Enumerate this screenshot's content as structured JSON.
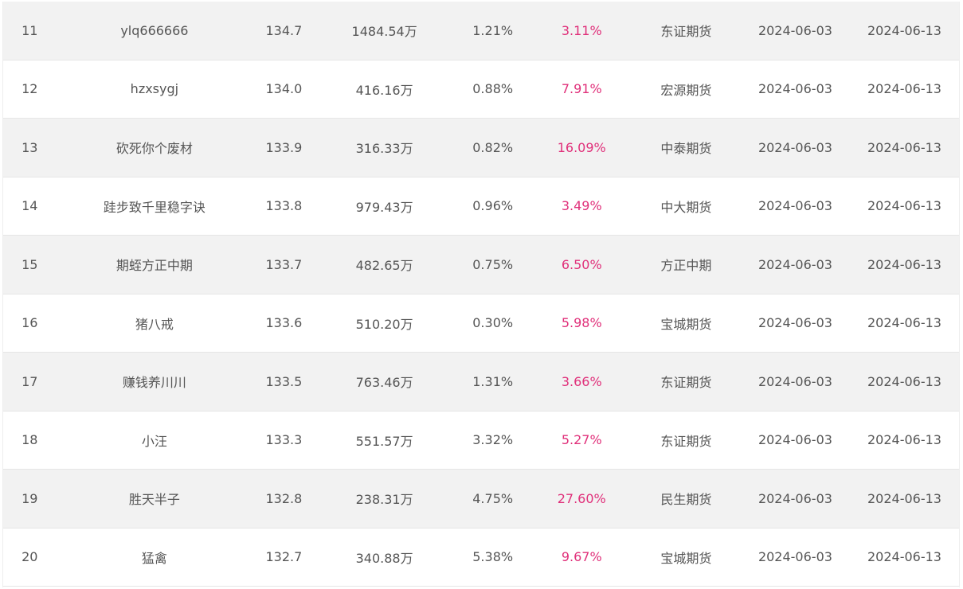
{
  "colors": {
    "row_odd_bg": "#f2f2f2",
    "row_even_bg": "#ffffff",
    "text": "#555555",
    "return_highlight": "#e0307a"
  },
  "rows": [
    {
      "rank": "11",
      "name": "ylq666666",
      "score": "134.7",
      "equity": "1484.54万",
      "drawdown": "1.21%",
      "return": "3.11%",
      "broker": "东证期货",
      "start": "2024-06-03",
      "end": "2024-06-13"
    },
    {
      "rank": "12",
      "name": "hzxsygj",
      "score": "134.0",
      "equity": "416.16万",
      "drawdown": "0.88%",
      "return": "7.91%",
      "broker": "宏源期货",
      "start": "2024-06-03",
      "end": "2024-06-13"
    },
    {
      "rank": "13",
      "name": "砍死你个废材",
      "score": "133.9",
      "equity": "316.33万",
      "drawdown": "0.82%",
      "return": "16.09%",
      "broker": "中泰期货",
      "start": "2024-06-03",
      "end": "2024-06-13"
    },
    {
      "rank": "14",
      "name": "跬步致千里稳字诀",
      "score": "133.8",
      "equity": "979.43万",
      "drawdown": "0.96%",
      "return": "3.49%",
      "broker": "中大期货",
      "start": "2024-06-03",
      "end": "2024-06-13"
    },
    {
      "rank": "15",
      "name": "期蛭方正中期",
      "score": "133.7",
      "equity": "482.65万",
      "drawdown": "0.75%",
      "return": "6.50%",
      "broker": "方正中期",
      "start": "2024-06-03",
      "end": "2024-06-13"
    },
    {
      "rank": "16",
      "name": "猪八戒",
      "score": "133.6",
      "equity": "510.20万",
      "drawdown": "0.30%",
      "return": "5.98%",
      "broker": "宝城期货",
      "start": "2024-06-03",
      "end": "2024-06-13"
    },
    {
      "rank": "17",
      "name": "赚钱养川川",
      "score": "133.5",
      "equity": "763.46万",
      "drawdown": "1.31%",
      "return": "3.66%",
      "broker": "东证期货",
      "start": "2024-06-03",
      "end": "2024-06-13"
    },
    {
      "rank": "18",
      "name": "小汪",
      "score": "133.3",
      "equity": "551.57万",
      "drawdown": "3.32%",
      "return": "5.27%",
      "broker": "东证期货",
      "start": "2024-06-03",
      "end": "2024-06-13"
    },
    {
      "rank": "19",
      "name": "胜天半子",
      "score": "132.8",
      "equity": "238.31万",
      "drawdown": "4.75%",
      "return": "27.60%",
      "broker": "民生期货",
      "start": "2024-06-03",
      "end": "2024-06-13"
    },
    {
      "rank": "20",
      "name": "猛禽",
      "score": "132.7",
      "equity": "340.88万",
      "drawdown": "5.38%",
      "return": "9.67%",
      "broker": "宝城期货",
      "start": "2024-06-03",
      "end": "2024-06-13"
    }
  ]
}
